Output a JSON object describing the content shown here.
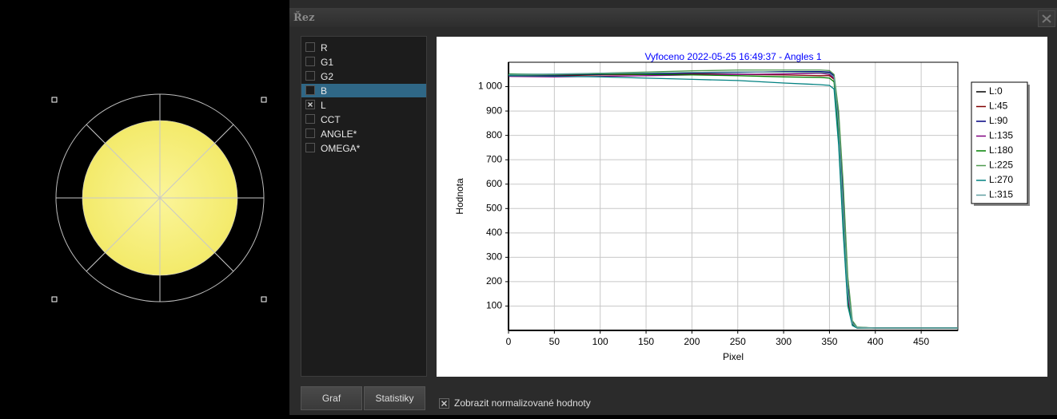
{
  "window": {
    "title": "Řez"
  },
  "list": {
    "items": [
      {
        "label": "R",
        "checked": false,
        "selected": false
      },
      {
        "label": "G1",
        "checked": false,
        "selected": false
      },
      {
        "label": "G2",
        "checked": false,
        "selected": false
      },
      {
        "label": "B",
        "checked": false,
        "selected": true
      },
      {
        "label": "L",
        "checked": true,
        "selected": false
      },
      {
        "label": "CCT",
        "checked": false,
        "selected": false
      },
      {
        "label": "ANGLE*",
        "checked": false,
        "selected": false
      },
      {
        "label": "OMEGA*",
        "checked": false,
        "selected": false
      }
    ]
  },
  "buttons": {
    "graph": "Graf",
    "stats": "Statistiky"
  },
  "normalize": {
    "label": "Zobrazit normalizované hodnoty",
    "checked": true
  },
  "chart_data": {
    "type": "line",
    "title": "Vyfoceno 2022-05-25 16:49:37 - Angles 1",
    "x_label": "Pixel",
    "y_label": "Hodnota",
    "x": [
      0,
      50,
      100,
      150,
      200,
      250,
      300,
      340,
      350,
      355,
      360,
      365,
      370,
      375,
      380,
      400,
      450,
      490
    ],
    "series": [
      {
        "name": "L:0",
        "color": "#000000",
        "values": [
          1045,
          1045,
          1050,
          1055,
          1058,
          1060,
          1060,
          1060,
          1058,
          1040,
          850,
          500,
          150,
          30,
          12,
          10,
          10,
          10
        ]
      },
      {
        "name": "L:45",
        "color": "#800000",
        "values": [
          1048,
          1045,
          1048,
          1050,
          1052,
          1050,
          1048,
          1045,
          1045,
          1030,
          800,
          450,
          120,
          25,
          10,
          10,
          10,
          10
        ]
      },
      {
        "name": "L:90",
        "color": "#000080",
        "values": [
          1050,
          1048,
          1050,
          1052,
          1055,
          1058,
          1062,
          1062,
          1060,
          1045,
          880,
          550,
          180,
          35,
          12,
          10,
          10,
          10
        ]
      },
      {
        "name": "L:135",
        "color": "#800080",
        "values": [
          1042,
          1040,
          1042,
          1045,
          1048,
          1050,
          1052,
          1055,
          1050,
          1035,
          820,
          480,
          140,
          28,
          11,
          10,
          10,
          10
        ]
      },
      {
        "name": "L:180",
        "color": "#008000",
        "values": [
          1052,
          1050,
          1052,
          1050,
          1048,
          1045,
          1040,
          1038,
          1035,
          1020,
          780,
          420,
          110,
          22,
          10,
          10,
          10,
          10
        ]
      },
      {
        "name": "L:225",
        "color": "#4f9a4f",
        "values": [
          1048,
          1050,
          1055,
          1060,
          1065,
          1068,
          1068,
          1068,
          1066,
          1050,
          900,
          600,
          220,
          40,
          14,
          10,
          10,
          10
        ]
      },
      {
        "name": "L:270",
        "color": "#008080",
        "values": [
          1045,
          1043,
          1040,
          1035,
          1030,
          1025,
          1015,
          1008,
          1005,
          990,
          760,
          400,
          100,
          20,
          10,
          10,
          10,
          10
        ]
      },
      {
        "name": "L:315",
        "color": "#5f9ea0",
        "values": [
          1050,
          1052,
          1055,
          1056,
          1058,
          1060,
          1060,
          1058,
          1055,
          1040,
          840,
          490,
          160,
          30,
          12,
          10,
          10,
          10
        ]
      }
    ],
    "xlim": [
      0,
      490
    ],
    "xticks": [
      0,
      50,
      100,
      150,
      200,
      250,
      300,
      350,
      400,
      450
    ],
    "ylim": [
      0,
      1100
    ],
    "yticks": [
      100,
      200,
      300,
      400,
      500,
      600,
      700,
      800,
      900,
      {
        "value": 1000,
        "label": "1 000"
      }
    ],
    "grid": true,
    "legend": "right"
  }
}
